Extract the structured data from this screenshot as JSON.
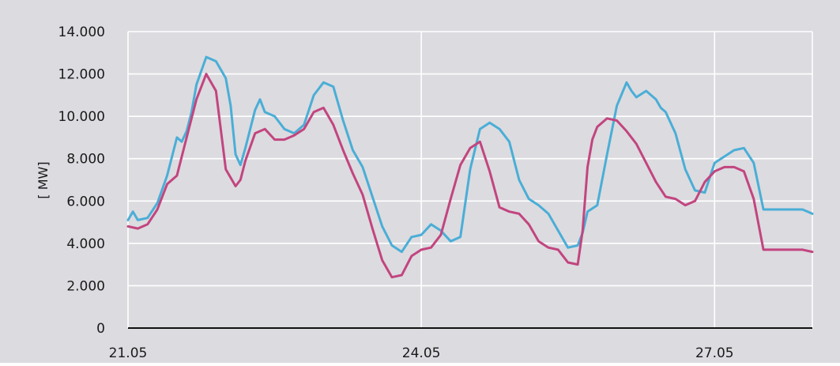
{
  "chart_data": {
    "type": "line",
    "title": "",
    "xlabel": "",
    "ylabel": "[ MW]",
    "ylim": [
      0,
      14000
    ],
    "xlim": [
      21.0,
      28.0
    ],
    "y_ticks": [
      0,
      2000,
      4000,
      6000,
      8000,
      10000,
      12000,
      14000
    ],
    "y_tick_labels": [
      "0",
      "2.000",
      "4.000",
      "6.000",
      "8.000",
      "10.000",
      "12.000",
      "14.000"
    ],
    "x_ticks": [
      21.0,
      24.0,
      27.0
    ],
    "x_tick_labels": [
      "21.05",
      "24.05",
      "27.05"
    ],
    "grid": true,
    "legend": "none",
    "colors": {
      "background": "#dcdbe0",
      "grid": "#ffffff"
    },
    "series": [
      {
        "color": "#4aaed6",
        "x": [
          21.0,
          21.05,
          21.1,
          21.2,
          21.3,
          21.4,
          21.5,
          21.55,
          21.6,
          21.65,
          21.7,
          21.8,
          21.9,
          22.0,
          22.05,
          22.1,
          22.15,
          22.2,
          22.3,
          22.35,
          22.4,
          22.5,
          22.6,
          22.7,
          22.8,
          22.9,
          23.0,
          23.1,
          23.2,
          23.3,
          23.4,
          23.5,
          23.6,
          23.7,
          23.8,
          23.9,
          24.0,
          24.1,
          24.2,
          24.3,
          24.4,
          24.5,
          24.6,
          24.7,
          24.8,
          24.9,
          25.0,
          25.1,
          25.2,
          25.3,
          25.4,
          25.5,
          25.6,
          25.65,
          25.7,
          25.8,
          25.9,
          26.0,
          26.1,
          26.15,
          26.2,
          26.3,
          26.4,
          26.45,
          26.5,
          26.6,
          26.7,
          26.8,
          26.9,
          27.0,
          27.1,
          27.2,
          27.3,
          27.4,
          27.5,
          27.6,
          27.7,
          27.8,
          27.9,
          28.0
        ],
        "y": [
          5100,
          5500,
          5100,
          5200,
          5900,
          7200,
          9000,
          8800,
          9300,
          10200,
          11500,
          12800,
          12600,
          11800,
          10500,
          8200,
          7700,
          8500,
          10300,
          10800,
          10200,
          10000,
          9400,
          9200,
          9600,
          11000,
          11600,
          11400,
          9800,
          8400,
          7600,
          6200,
          4800,
          3900,
          3600,
          4300,
          4400,
          4900,
          4600,
          4100,
          4300,
          7500,
          9400,
          9700,
          9400,
          8800,
          7000,
          6100,
          5800,
          5400,
          4600,
          3800,
          3900,
          4500,
          5500,
          5800,
          8200,
          10500,
          11600,
          11200,
          10900,
          11200,
          10800,
          10400,
          10200,
          9200,
          7500,
          6500,
          6400,
          7800,
          8100,
          8400,
          8500,
          7800,
          5600,
          5600,
          5600,
          5600,
          5600,
          5400
        ]
      },
      {
        "color": "#c2457f",
        "x": [
          21.0,
          21.1,
          21.2,
          21.3,
          21.4,
          21.5,
          21.6,
          21.7,
          21.8,
          21.9,
          22.0,
          22.1,
          22.15,
          22.2,
          22.3,
          22.4,
          22.5,
          22.6,
          22.7,
          22.8,
          22.9,
          23.0,
          23.1,
          23.2,
          23.3,
          23.4,
          23.5,
          23.6,
          23.7,
          23.8,
          23.9,
          24.0,
          24.1,
          24.2,
          24.3,
          24.4,
          24.5,
          24.6,
          24.7,
          24.8,
          24.9,
          25.0,
          25.1,
          25.2,
          25.3,
          25.4,
          25.5,
          25.6,
          25.65,
          25.7,
          25.75,
          25.8,
          25.9,
          26.0,
          26.1,
          26.2,
          26.3,
          26.4,
          26.5,
          26.6,
          26.7,
          26.8,
          26.9,
          27.0,
          27.1,
          27.2,
          27.3,
          27.4,
          27.5,
          27.6,
          27.7,
          27.8,
          27.9,
          28.0
        ],
        "y": [
          4800,
          4700,
          4900,
          5600,
          6800,
          7200,
          9000,
          10800,
          12000,
          11200,
          7500,
          6700,
          7000,
          7900,
          9200,
          9400,
          8900,
          8900,
          9100,
          9400,
          10200,
          10400,
          9600,
          8400,
          7300,
          6300,
          4700,
          3200,
          2400,
          2500,
          3400,
          3700,
          3800,
          4400,
          6100,
          7700,
          8500,
          8800,
          7400,
          5700,
          5500,
          5400,
          4900,
          4100,
          3800,
          3700,
          3100,
          3000,
          4600,
          7600,
          8900,
          9500,
          9900,
          9800,
          9300,
          8700,
          7800,
          6900,
          6200,
          6100,
          5800,
          6000,
          6900,
          7400,
          7600,
          7600,
          7400,
          6100,
          3700,
          3700,
          3700,
          3700,
          3700,
          3600
        ]
      }
    ]
  }
}
